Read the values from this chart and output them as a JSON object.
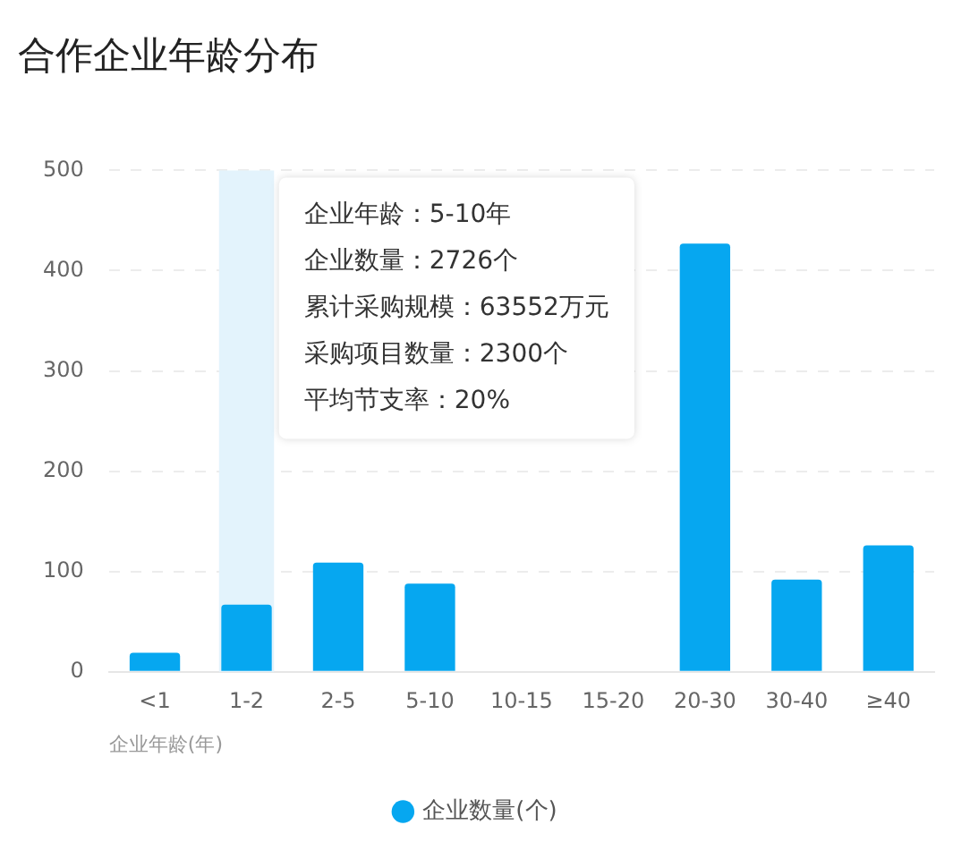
{
  "chart_data": {
    "type": "bar",
    "title": "合作企业年龄分布",
    "xlabel": "企业年龄(年)",
    "categories": [
      "<1",
      "1-2",
      "2-5",
      "5-10",
      "10-15",
      "15-20",
      "20-30",
      "30-40",
      "≥40"
    ],
    "series": [
      {
        "name": "企业数量(个)",
        "color": "#06a7f0",
        "values": [
          19,
          67,
          109,
          88,
          null,
          null,
          427,
          92,
          126
        ]
      }
    ],
    "ylim": [
      0,
      500
    ],
    "yticks": [
      0,
      100,
      200,
      300,
      400,
      500
    ],
    "grid": "y",
    "legend": "bottom",
    "bands": [
      {
        "axis": "x",
        "from": "1-2",
        "to": "1-2",
        "color": "#e3f3fc"
      }
    ],
    "annotations": [
      "企业年龄：5-10年",
      "企业数量：2726个",
      "累计采购规模：63552万元",
      "采购项目数量：2300个",
      "平均节支率：20%"
    ]
  }
}
